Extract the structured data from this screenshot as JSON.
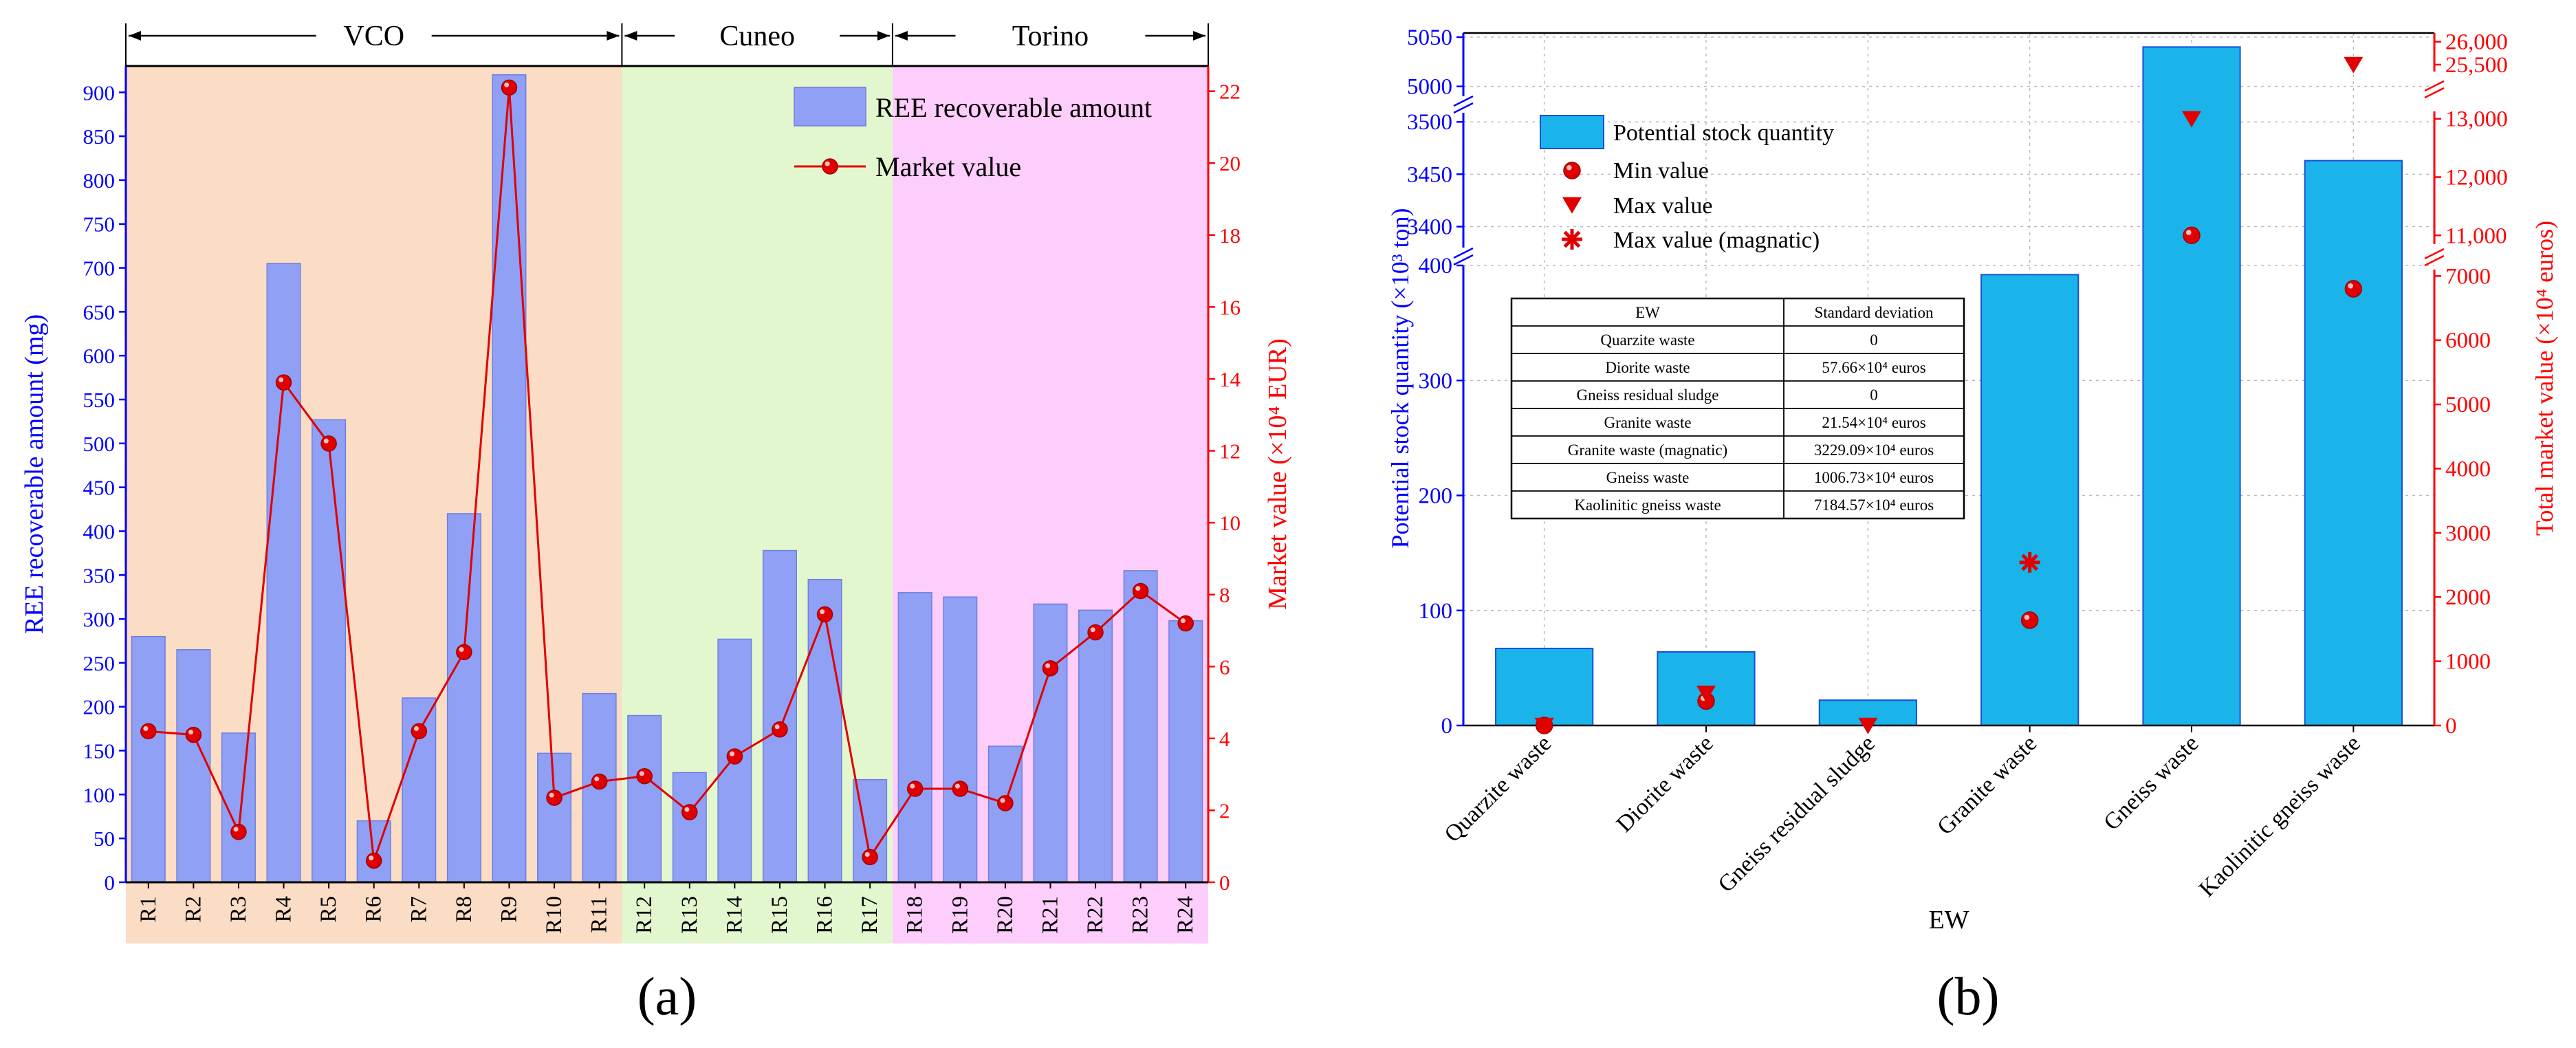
{
  "chart_data": [
    {
      "type": "bar",
      "panel_label": "(a)",
      "regions": [
        {
          "name": "VCO",
          "from": "R1",
          "to": "R11",
          "color": "#fbdcc5"
        },
        {
          "name": "Cuneo",
          "from": "R12",
          "to": "R17",
          "color": "#e3f7cf"
        },
        {
          "name": "Torino",
          "from": "R18",
          "to": "R24",
          "color": "#fdcdfb"
        }
      ],
      "categories": [
        "R1",
        "R2",
        "R3",
        "R4",
        "R5",
        "R6",
        "R7",
        "R8",
        "R9",
        "R10",
        "R11",
        "R12",
        "R13",
        "R14",
        "R15",
        "R16",
        "R17",
        "R18",
        "R19",
        "R20",
        "R21",
        "R22",
        "R23",
        "R24"
      ],
      "series": [
        {
          "name": "REE recoverable amount",
          "kind": "bar",
          "axis": "left",
          "color": "#8fa0f5",
          "values": [
            280,
            265,
            170,
            705,
            527,
            70,
            210,
            420,
            920,
            147,
            215,
            190,
            125,
            277,
            378,
            345,
            117,
            330,
            325,
            155,
            317,
            310,
            355,
            298
          ]
        },
        {
          "name": "Market value",
          "kind": "line",
          "axis": "right",
          "color": "#e00000",
          "values": [
            4.2,
            4.1,
            1.4,
            13.9,
            12.2,
            0.6,
            4.2,
            6.4,
            22.1,
            2.35,
            2.8,
            2.95,
            1.95,
            3.5,
            4.25,
            7.45,
            0.7,
            2.6,
            2.6,
            2.2,
            5.95,
            6.95,
            8.1,
            7.2
          ]
        }
      ],
      "ylabel": "REE recoverable amount (mg)",
      "y2label": "Market value (×10⁴ EUR)",
      "ylim": [
        0,
        930
      ],
      "yticks": [
        0,
        50,
        100,
        150,
        200,
        250,
        300,
        350,
        400,
        450,
        500,
        550,
        600,
        650,
        700,
        750,
        800,
        850,
        900
      ],
      "y2lim": [
        0,
        22.7
      ],
      "y2ticks": [
        0,
        2,
        4,
        6,
        8,
        10,
        12,
        14,
        16,
        18,
        20,
        22
      ],
      "legend": "top-right",
      "grid": false
    },
    {
      "type": "bar",
      "panel_label": "(b)",
      "xlabel": "EW",
      "ylabel": "Potential stock quantity (×10³ ton)",
      "y2label": "Total market value (×10⁴ euros)",
      "categories": [
        "Quarzite waste",
        "Diorite waste",
        "Gneiss residual sludge",
        "Granite waste",
        "Gneiss waste",
        "Kaolinitic gneiss waste"
      ],
      "series": [
        {
          "name": "Potential stock quantity",
          "kind": "bar",
          "axis": "left",
          "color": "#1ab4ea",
          "values": [
            67,
            64,
            22,
            392,
            5040,
            3463
          ]
        },
        {
          "name": "Min value",
          "kind": "scatter",
          "marker": "circle",
          "axis": "right",
          "color": "#e00000",
          "values": [
            0,
            380,
            null,
            1640,
            11000,
            6800
          ]
        },
        {
          "name": "Max value",
          "kind": "scatter",
          "marker": "triangle-down",
          "axis": "right",
          "color": "#e00000",
          "values": [
            0,
            500,
            0,
            null,
            13000,
            25500
          ]
        },
        {
          "name": "Max value (magnatic)",
          "kind": "scatter",
          "marker": "asterisk",
          "axis": "right",
          "color": "#e00000",
          "values": [
            null,
            null,
            null,
            2540,
            null,
            null
          ]
        }
      ],
      "left_axis_segments": [
        {
          "range": [
            0,
            400
          ],
          "ticks": [
            0,
            100,
            200,
            300,
            400
          ]
        },
        {
          "range": [
            3380,
            3510
          ],
          "ticks": [
            3400,
            3450,
            3500
          ]
        },
        {
          "range": [
            4990,
            5050
          ],
          "ticks": [
            5000,
            5050
          ]
        }
      ],
      "right_axis_segments": [
        {
          "range": [
            0,
            7100
          ],
          "ticks": [
            0,
            1000,
            2000,
            3000,
            4000,
            5000,
            6000,
            7000
          ],
          "labels": [
            "0",
            "1000",
            "2000",
            "3000",
            "4000",
            "5000",
            "6000",
            "7000"
          ]
        },
        {
          "range": [
            10850,
            13150
          ],
          "ticks": [
            11000,
            12000,
            13000
          ],
          "labels": [
            "11,000",
            "12,000",
            "13,000"
          ]
        },
        {
          "range": [
            25350,
            26100
          ],
          "ticks": [
            25500,
            26000
          ],
          "labels": [
            "25,500",
            "26,000"
          ]
        }
      ],
      "legend": "top-left",
      "grid": true,
      "table": {
        "headers": [
          "EW",
          "Standard deviation"
        ],
        "rows": [
          [
            "Quarzite waste",
            "0"
          ],
          [
            "Diorite waste",
            "57.66×10⁴ euros"
          ],
          [
            "Gneiss residual sludge",
            "0"
          ],
          [
            "Granite waste",
            "21.54×10⁴ euros"
          ],
          [
            "Granite waste (magnatic)",
            "3229.09×10⁴ euros"
          ],
          [
            "Gneiss waste",
            "1006.73×10⁴ euros"
          ],
          [
            "Kaolinitic gneiss waste",
            "7184.57×10⁴ euros"
          ]
        ]
      }
    }
  ]
}
